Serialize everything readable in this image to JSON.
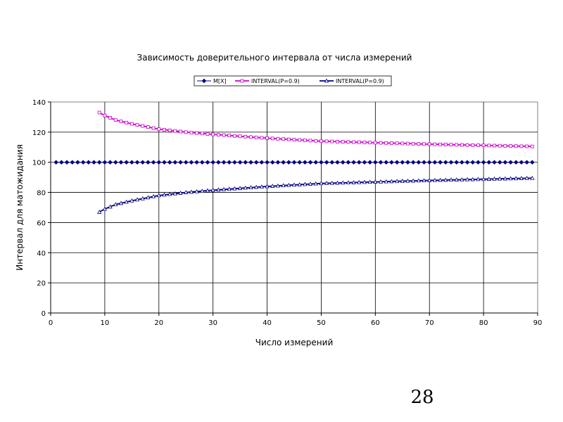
{
  "page": {
    "number": "28"
  },
  "chart_data": {
    "type": "line",
    "title": "Зависимость доверительного интервала от числа измерений",
    "xlabel": "Число измерений",
    "ylabel": "Интервал для матожидания",
    "xlim": [
      0,
      90
    ],
    "ylim": [
      0,
      140
    ],
    "xticks": [
      0,
      10,
      20,
      30,
      40,
      50,
      60,
      70,
      80,
      90
    ],
    "yticks": [
      0,
      20,
      40,
      60,
      80,
      100,
      120,
      140
    ],
    "grid": true,
    "legend": "top-center",
    "series": [
      {
        "name": "M[X]",
        "color": "#000080",
        "marker": "diamond",
        "x_range": [
          1,
          89
        ],
        "constant": 100
      },
      {
        "name": "INTERVAL(P=0.9)",
        "color": "#cc00cc",
        "marker": "square",
        "x": [
          9,
          10,
          12,
          15,
          20,
          25,
          30,
          40,
          50,
          60,
          70,
          80,
          89
        ],
        "values": [
          133,
          131,
          128,
          125.5,
          122,
          120,
          118.5,
          116,
          114,
          113,
          112,
          111.2,
          110.5
        ]
      },
      {
        "name": "INTERVAL(P=0.9)",
        "color": "#000080",
        "marker": "triangle",
        "x": [
          9,
          10,
          12,
          15,
          20,
          25,
          30,
          40,
          50,
          60,
          70,
          80,
          89
        ],
        "values": [
          67,
          69,
          72,
          74.5,
          78,
          80,
          81.5,
          84,
          86,
          87,
          88,
          88.8,
          89.5
        ]
      }
    ]
  }
}
